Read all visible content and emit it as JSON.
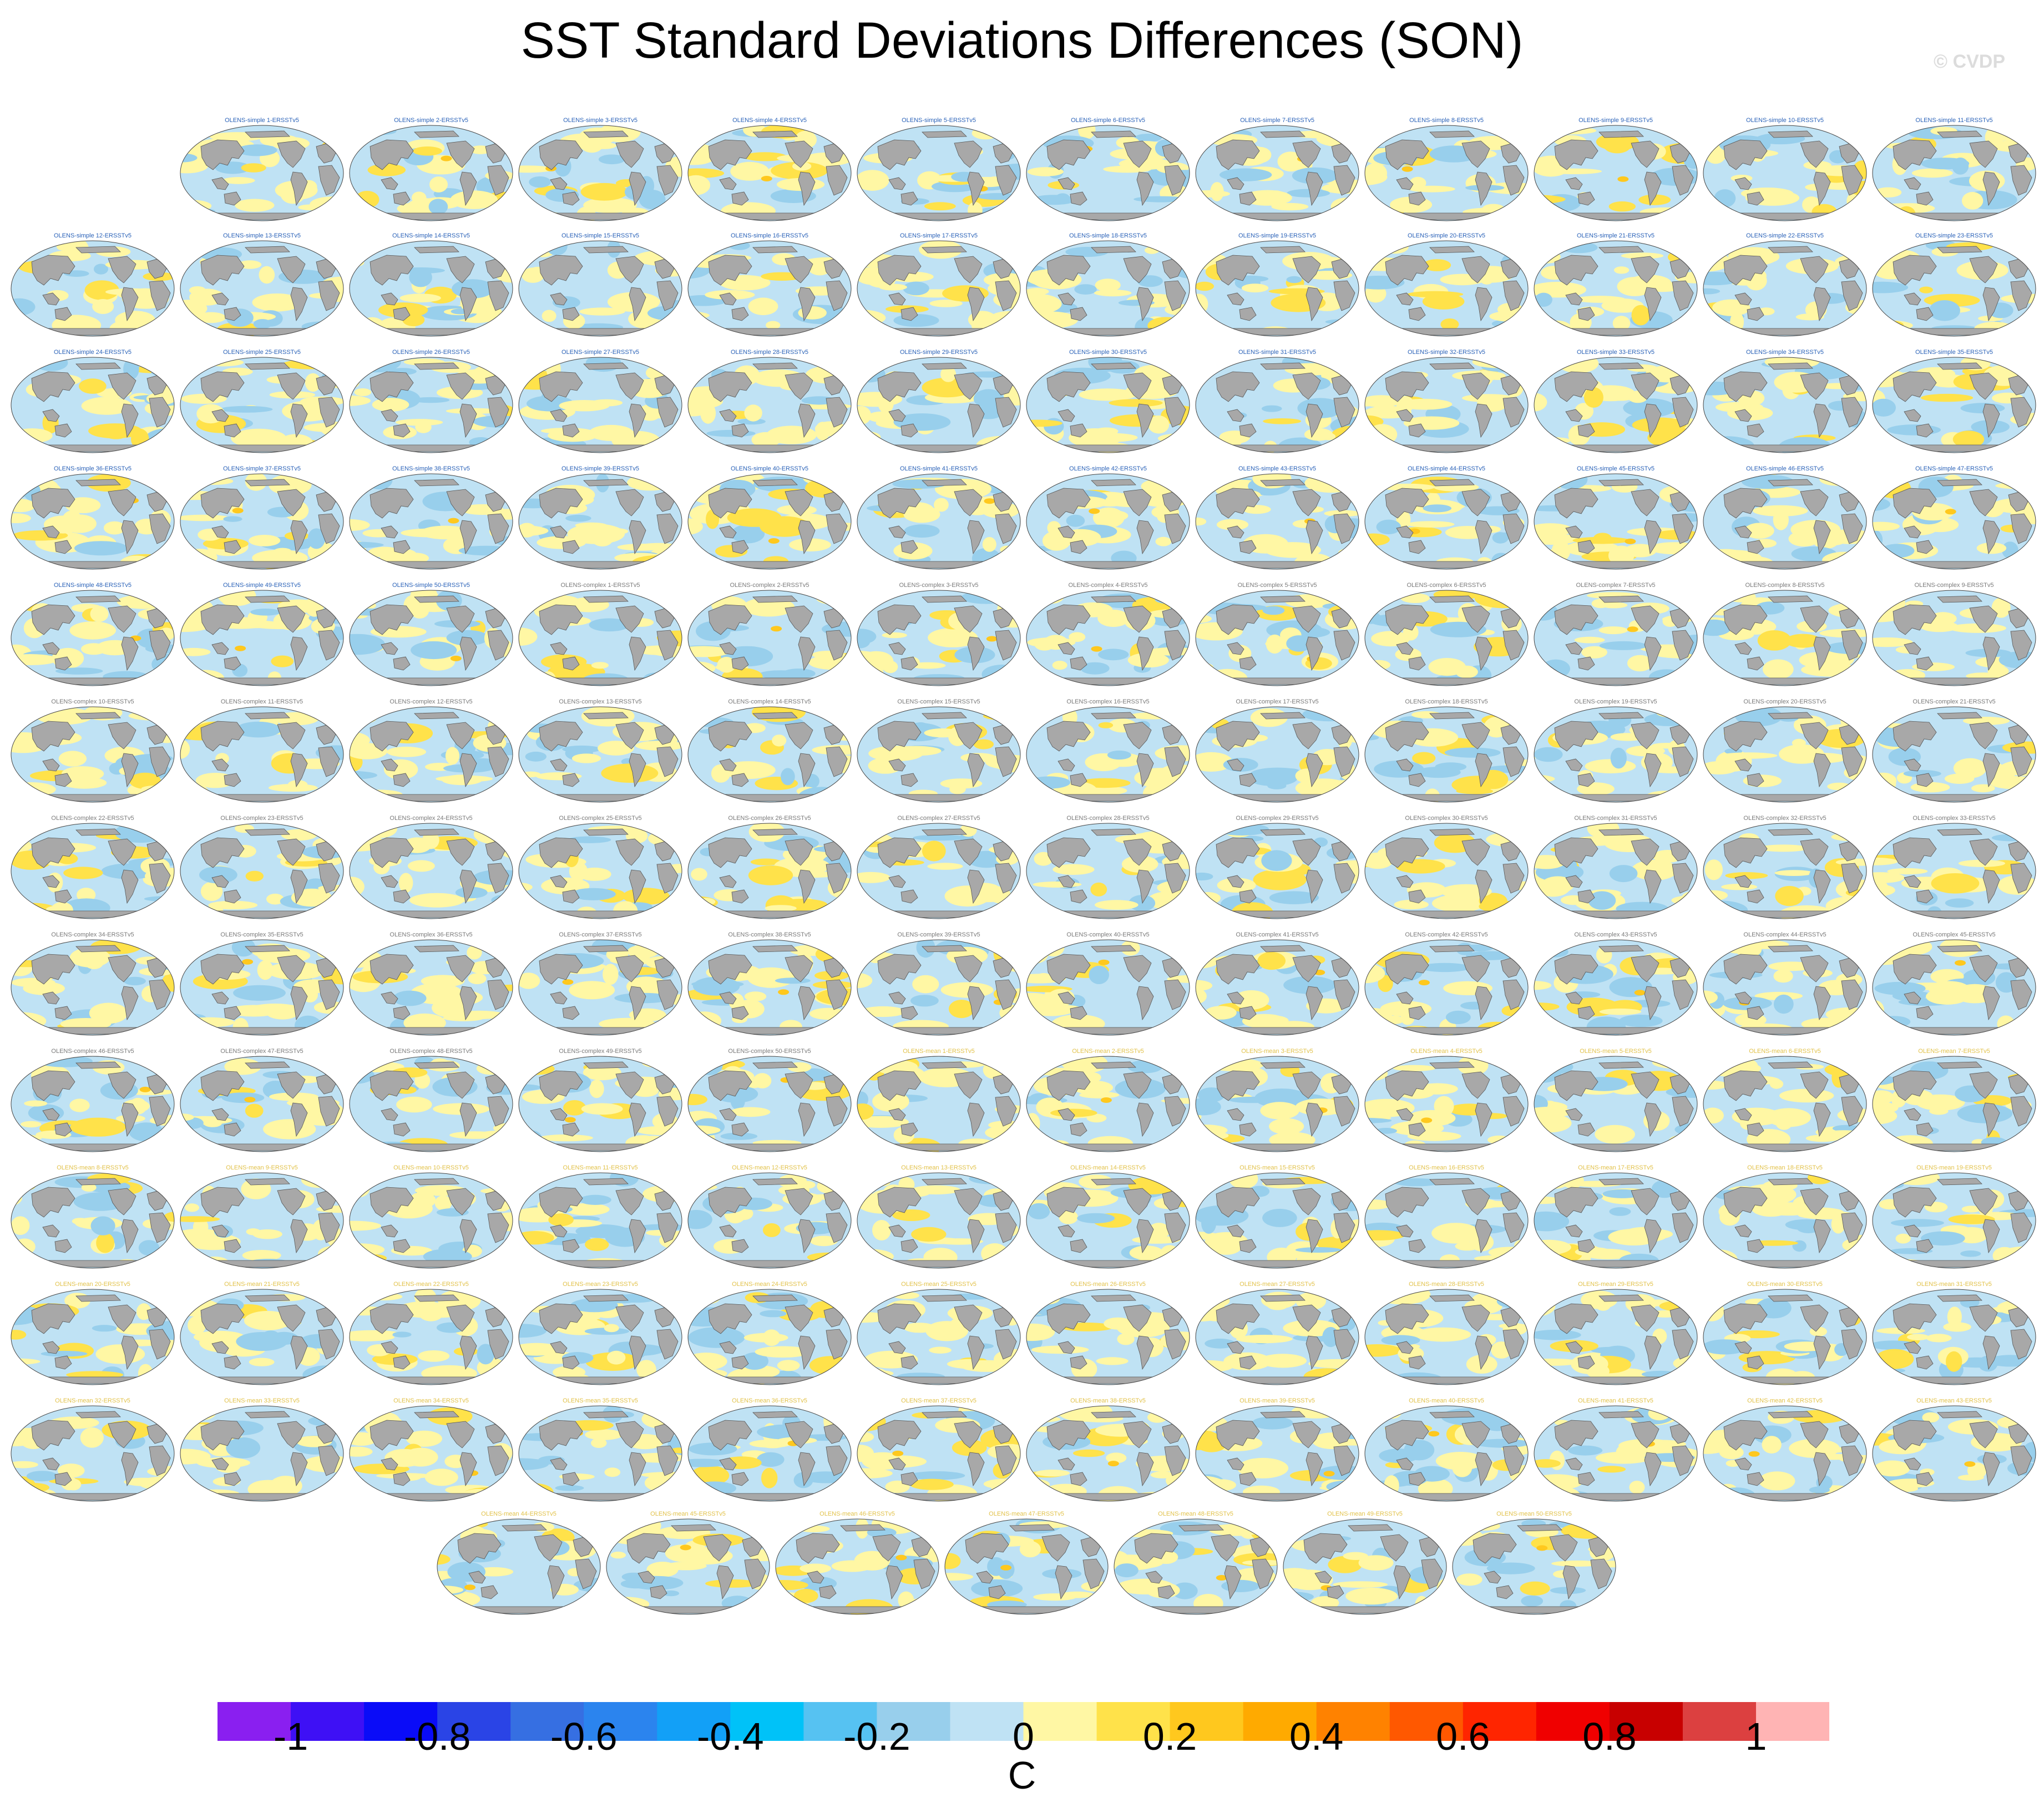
{
  "title": "SST Standard Deviations Differences (SON)",
  "watermark": "© CVDP",
  "colorbar": {
    "units": "C",
    "labels": [
      "-1",
      "-0.8",
      "-0.6",
      "-0.4",
      "-0.2",
      "0",
      "0.2",
      "0.4",
      "0.6",
      "0.8",
      "1"
    ],
    "colors": [
      "#8a1ff0",
      "#3e10f5",
      "#0a0cf8",
      "#2a44e6",
      "#366fe2",
      "#2b84ee",
      "#12a0f7",
      "#00c2f8",
      "#56c2f2",
      "#98cfec",
      "#bfe2f4",
      "#fff7a4",
      "#ffe24a",
      "#ffc81e",
      "#ffaa00",
      "#ff8200",
      "#ff5800",
      "#ff2500",
      "#f00000",
      "#c80000",
      "#dc4040",
      "#ffb4b4"
    ]
  },
  "title_colors": {
    "simple": "#2a62b8",
    "complex": "#7a7a7a",
    "mean": "#e2c24a"
  },
  "panels": [
    {
      "label": "OLENS-simple 1-ERSSTv5",
      "group": "simple"
    },
    {
      "label": "OLENS-simple 2-ERSSTv5",
      "group": "simple"
    },
    {
      "label": "OLENS-simple 3-ERSSTv5",
      "group": "simple"
    },
    {
      "label": "OLENS-simple 4-ERSSTv5",
      "group": "simple"
    },
    {
      "label": "OLENS-simple 5-ERSSTv5",
      "group": "simple"
    },
    {
      "label": "OLENS-simple 6-ERSSTv5",
      "group": "simple"
    },
    {
      "label": "OLENS-simple 7-ERSSTv5",
      "group": "simple"
    },
    {
      "label": "OLENS-simple 8-ERSSTv5",
      "group": "simple"
    },
    {
      "label": "OLENS-simple 9-ERSSTv5",
      "group": "simple"
    },
    {
      "label": "OLENS-simple 10-ERSSTv5",
      "group": "simple"
    },
    {
      "label": "OLENS-simple 11-ERSSTv5",
      "group": "simple"
    },
    {
      "label": "OLENS-simple 12-ERSSTv5",
      "group": "simple"
    },
    {
      "label": "OLENS-simple 13-ERSSTv5",
      "group": "simple"
    },
    {
      "label": "OLENS-simple 14-ERSSTv5",
      "group": "simple"
    },
    {
      "label": "OLENS-simple 15-ERSSTv5",
      "group": "simple"
    },
    {
      "label": "OLENS-simple 16-ERSSTv5",
      "group": "simple"
    },
    {
      "label": "OLENS-simple 17-ERSSTv5",
      "group": "simple"
    },
    {
      "label": "OLENS-simple 18-ERSSTv5",
      "group": "simple"
    },
    {
      "label": "OLENS-simple 19-ERSSTv5",
      "group": "simple"
    },
    {
      "label": "OLENS-simple 20-ERSSTv5",
      "group": "simple"
    },
    {
      "label": "OLENS-simple 21-ERSSTv5",
      "group": "simple"
    },
    {
      "label": "OLENS-simple 22-ERSSTv5",
      "group": "simple"
    },
    {
      "label": "OLENS-simple 23-ERSSTv5",
      "group": "simple"
    },
    {
      "label": "OLENS-simple 24-ERSSTv5",
      "group": "simple"
    },
    {
      "label": "OLENS-simple 25-ERSSTv5",
      "group": "simple"
    },
    {
      "label": "OLENS-simple 26-ERSSTv5",
      "group": "simple"
    },
    {
      "label": "OLENS-simple 27-ERSSTv5",
      "group": "simple"
    },
    {
      "label": "OLENS-simple 28-ERSSTv5",
      "group": "simple"
    },
    {
      "label": "OLENS-simple 29-ERSSTv5",
      "group": "simple"
    },
    {
      "label": "OLENS-simple 30-ERSSTv5",
      "group": "simple"
    },
    {
      "label": "OLENS-simple 31-ERSSTv5",
      "group": "simple"
    },
    {
      "label": "OLENS-simple 32-ERSSTv5",
      "group": "simple"
    },
    {
      "label": "OLENS-simple 33-ERSSTv5",
      "group": "simple"
    },
    {
      "label": "OLENS-simple 34-ERSSTv5",
      "group": "simple"
    },
    {
      "label": "OLENS-simple 35-ERSSTv5",
      "group": "simple"
    },
    {
      "label": "OLENS-simple 36-ERSSTv5",
      "group": "simple"
    },
    {
      "label": "OLENS-simple 37-ERSSTv5",
      "group": "simple"
    },
    {
      "label": "OLENS-simple 38-ERSSTv5",
      "group": "simple"
    },
    {
      "label": "OLENS-simple 39-ERSSTv5",
      "group": "simple"
    },
    {
      "label": "OLENS-simple 40-ERSSTv5",
      "group": "simple"
    },
    {
      "label": "OLENS-simple 41-ERSSTv5",
      "group": "simple"
    },
    {
      "label": "OLENS-simple 42-ERSSTv5",
      "group": "simple"
    },
    {
      "label": "OLENS-simple 43-ERSSTv5",
      "group": "simple"
    },
    {
      "label": "OLENS-simple 44-ERSSTv5",
      "group": "simple"
    },
    {
      "label": "OLENS-simple 45-ERSSTv5",
      "group": "simple"
    },
    {
      "label": "OLENS-simple 46-ERSSTv5",
      "group": "simple"
    },
    {
      "label": "OLENS-simple 47-ERSSTv5",
      "group": "simple"
    },
    {
      "label": "OLENS-simple 48-ERSSTv5",
      "group": "simple"
    },
    {
      "label": "OLENS-simple 49-ERSSTv5",
      "group": "simple"
    },
    {
      "label": "OLENS-simple 50-ERSSTv5",
      "group": "simple"
    },
    {
      "label": "OLENS-complex 1-ERSSTv5",
      "group": "complex"
    },
    {
      "label": "OLENS-complex 2-ERSSTv5",
      "group": "complex"
    },
    {
      "label": "OLENS-complex 3-ERSSTv5",
      "group": "complex"
    },
    {
      "label": "OLENS-complex 4-ERSSTv5",
      "group": "complex"
    },
    {
      "label": "OLENS-complex 5-ERSSTv5",
      "group": "complex"
    },
    {
      "label": "OLENS-complex 6-ERSSTv5",
      "group": "complex"
    },
    {
      "label": "OLENS-complex 7-ERSSTv5",
      "group": "complex"
    },
    {
      "label": "OLENS-complex 8-ERSSTv5",
      "group": "complex"
    },
    {
      "label": "OLENS-complex 9-ERSSTv5",
      "group": "complex"
    },
    {
      "label": "OLENS-complex 10-ERSSTv5",
      "group": "complex"
    },
    {
      "label": "OLENS-complex 11-ERSSTv5",
      "group": "complex"
    },
    {
      "label": "OLENS-complex 12-ERSSTv5",
      "group": "complex"
    },
    {
      "label": "OLENS-complex 13-ERSSTv5",
      "group": "complex"
    },
    {
      "label": "OLENS-complex 14-ERSSTv5",
      "group": "complex"
    },
    {
      "label": "OLENS-complex 15-ERSSTv5",
      "group": "complex"
    },
    {
      "label": "OLENS-complex 16-ERSSTv5",
      "group": "complex"
    },
    {
      "label": "OLENS-complex 17-ERSSTv5",
      "group": "complex"
    },
    {
      "label": "OLENS-complex 18-ERSSTv5",
      "group": "complex"
    },
    {
      "label": "OLENS-complex 19-ERSSTv5",
      "group": "complex"
    },
    {
      "label": "OLENS-complex 20-ERSSTv5",
      "group": "complex"
    },
    {
      "label": "OLENS-complex 21-ERSSTv5",
      "group": "complex"
    },
    {
      "label": "OLENS-complex 22-ERSSTv5",
      "group": "complex"
    },
    {
      "label": "OLENS-complex 23-ERSSTv5",
      "group": "complex"
    },
    {
      "label": "OLENS-complex 24-ERSSTv5",
      "group": "complex"
    },
    {
      "label": "OLENS-complex 25-ERSSTv5",
      "group": "complex"
    },
    {
      "label": "OLENS-complex 26-ERSSTv5",
      "group": "complex"
    },
    {
      "label": "OLENS-complex 27-ERSSTv5",
      "group": "complex"
    },
    {
      "label": "OLENS-complex 28-ERSSTv5",
      "group": "complex"
    },
    {
      "label": "OLENS-complex 29-ERSSTv5",
      "group": "complex"
    },
    {
      "label": "OLENS-complex 30-ERSSTv5",
      "group": "complex"
    },
    {
      "label": "OLENS-complex 31-ERSSTv5",
      "group": "complex"
    },
    {
      "label": "OLENS-complex 32-ERSSTv5",
      "group": "complex"
    },
    {
      "label": "OLENS-complex 33-ERSSTv5",
      "group": "complex"
    },
    {
      "label": "OLENS-complex 34-ERSSTv5",
      "group": "complex"
    },
    {
      "label": "OLENS-complex 35-ERSSTv5",
      "group": "complex"
    },
    {
      "label": "OLENS-complex 36-ERSSTv5",
      "group": "complex"
    },
    {
      "label": "OLENS-complex 37-ERSSTv5",
      "group": "complex"
    },
    {
      "label": "OLENS-complex 38-ERSSTv5",
      "group": "complex"
    },
    {
      "label": "OLENS-complex 39-ERSSTv5",
      "group": "complex"
    },
    {
      "label": "OLENS-complex 40-ERSSTv5",
      "group": "complex"
    },
    {
      "label": "OLENS-complex 41-ERSSTv5",
      "group": "complex"
    },
    {
      "label": "OLENS-complex 42-ERSSTv5",
      "group": "complex"
    },
    {
      "label": "OLENS-complex 43-ERSSTv5",
      "group": "complex"
    },
    {
      "label": "OLENS-complex 44-ERSSTv5",
      "group": "complex"
    },
    {
      "label": "OLENS-complex 45-ERSSTv5",
      "group": "complex"
    },
    {
      "label": "OLENS-complex 46-ERSSTv5",
      "group": "complex"
    },
    {
      "label": "OLENS-complex 47-ERSSTv5",
      "group": "complex"
    },
    {
      "label": "OLENS-complex 48-ERSSTv5",
      "group": "complex"
    },
    {
      "label": "OLENS-complex 49-ERSSTv5",
      "group": "complex"
    },
    {
      "label": "OLENS-complex 50-ERSSTv5",
      "group": "complex"
    },
    {
      "label": "OLENS-mean 1-ERSSTv5",
      "group": "mean"
    },
    {
      "label": "OLENS-mean 2-ERSSTv5",
      "group": "mean"
    },
    {
      "label": "OLENS-mean 3-ERSSTv5",
      "group": "mean"
    },
    {
      "label": "OLENS-mean 4-ERSSTv5",
      "group": "mean"
    },
    {
      "label": "OLENS-mean 5-ERSSTv5",
      "group": "mean"
    },
    {
      "label": "OLENS-mean 6-ERSSTv5",
      "group": "mean"
    },
    {
      "label": "OLENS-mean 7-ERSSTv5",
      "group": "mean"
    },
    {
      "label": "OLENS-mean 8-ERSSTv5",
      "group": "mean"
    },
    {
      "label": "OLENS-mean 9-ERSSTv5",
      "group": "mean"
    },
    {
      "label": "OLENS-mean 10-ERSSTv5",
      "group": "mean"
    },
    {
      "label": "OLENS-mean 11-ERSSTv5",
      "group": "mean"
    },
    {
      "label": "OLENS-mean 12-ERSSTv5",
      "group": "mean"
    },
    {
      "label": "OLENS-mean 13-ERSSTv5",
      "group": "mean"
    },
    {
      "label": "OLENS-mean 14-ERSSTv5",
      "group": "mean"
    },
    {
      "label": "OLENS-mean 15-ERSSTv5",
      "group": "mean"
    },
    {
      "label": "OLENS-mean 16-ERSSTv5",
      "group": "mean"
    },
    {
      "label": "OLENS-mean 17-ERSSTv5",
      "group": "mean"
    },
    {
      "label": "OLENS-mean 18-ERSSTv5",
      "group": "mean"
    },
    {
      "label": "OLENS-mean 19-ERSSTv5",
      "group": "mean"
    },
    {
      "label": "OLENS-mean 20-ERSSTv5",
      "group": "mean"
    },
    {
      "label": "OLENS-mean 21-ERSSTv5",
      "group": "mean"
    },
    {
      "label": "OLENS-mean 22-ERSSTv5",
      "group": "mean"
    },
    {
      "label": "OLENS-mean 23-ERSSTv5",
      "group": "mean"
    },
    {
      "label": "OLENS-mean 24-ERSSTv5",
      "group": "mean"
    },
    {
      "label": "OLENS-mean 25-ERSSTv5",
      "group": "mean"
    },
    {
      "label": "OLENS-mean 26-ERSSTv5",
      "group": "mean"
    },
    {
      "label": "OLENS-mean 27-ERSSTv5",
      "group": "mean"
    },
    {
      "label": "OLENS-mean 28-ERSSTv5",
      "group": "mean"
    },
    {
      "label": "OLENS-mean 29-ERSSTv5",
      "group": "mean"
    },
    {
      "label": "OLENS-mean 30-ERSSTv5",
      "group": "mean"
    },
    {
      "label": "OLENS-mean 31-ERSSTv5",
      "group": "mean"
    },
    {
      "label": "OLENS-mean 32-ERSSTv5",
      "group": "mean"
    },
    {
      "label": "OLENS-mean 33-ERSSTv5",
      "group": "mean"
    },
    {
      "label": "OLENS-mean 34-ERSSTv5",
      "group": "mean"
    },
    {
      "label": "OLENS-mean 35-ERSSTv5",
      "group": "mean"
    },
    {
      "label": "OLENS-mean 36-ERSSTv5",
      "group": "mean"
    },
    {
      "label": "OLENS-mean 37-ERSSTv5",
      "group": "mean"
    },
    {
      "label": "OLENS-mean 38-ERSSTv5",
      "group": "mean"
    },
    {
      "label": "OLENS-mean 39-ERSSTv5",
      "group": "mean"
    },
    {
      "label": "OLENS-mean 40-ERSSTv5",
      "group": "mean"
    },
    {
      "label": "OLENS-mean 41-ERSSTv5",
      "group": "mean"
    },
    {
      "label": "OLENS-mean 42-ERSSTv5",
      "group": "mean"
    },
    {
      "label": "OLENS-mean 43-ERSSTv5",
      "group": "mean"
    },
    {
      "label": "OLENS-mean 44-ERSSTv5",
      "group": "mean"
    },
    {
      "label": "OLENS-mean 45-ERSSTv5",
      "group": "mean"
    },
    {
      "label": "OLENS-mean 46-ERSSTv5",
      "group": "mean"
    },
    {
      "label": "OLENS-mean 47-ERSSTv5",
      "group": "mean"
    },
    {
      "label": "OLENS-mean 48-ERSSTv5",
      "group": "mean"
    },
    {
      "label": "OLENS-mean 49-ERSSTv5",
      "group": "mean"
    },
    {
      "label": "OLENS-mean 50-ERSSTv5",
      "group": "mean"
    }
  ]
}
